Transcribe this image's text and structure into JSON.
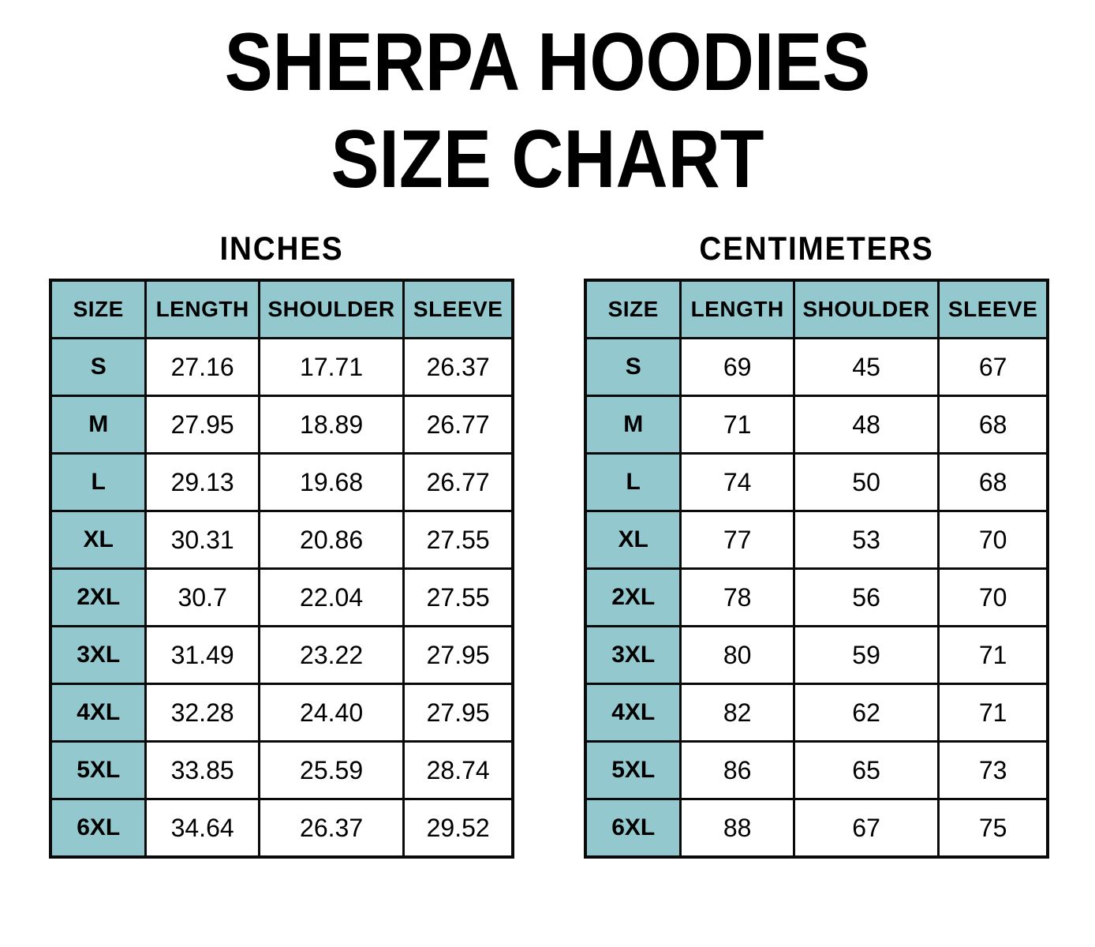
{
  "title": {
    "line1": "SHERPA HOODIES",
    "line2": "SIZE CHART"
  },
  "colors": {
    "header_bg": "#93c9ce",
    "border": "#0a0a0a",
    "text": "#000000",
    "page_bg": "#ffffff"
  },
  "chart_data": [
    {
      "type": "table",
      "title": "INCHES",
      "columns": [
        "SIZE",
        "LENGTH",
        "SHOULDER",
        "SLEEVE"
      ],
      "rows": [
        [
          "S",
          "27.16",
          "17.71",
          "26.37"
        ],
        [
          "M",
          "27.95",
          "18.89",
          "26.77"
        ],
        [
          "L",
          "29.13",
          "19.68",
          "26.77"
        ],
        [
          "XL",
          "30.31",
          "20.86",
          "27.55"
        ],
        [
          "2XL",
          "30.7",
          "22.04",
          "27.55"
        ],
        [
          "3XL",
          "31.49",
          "23.22",
          "27.95"
        ],
        [
          "4XL",
          "32.28",
          "24.40",
          "27.95"
        ],
        [
          "5XL",
          "33.85",
          "25.59",
          "28.74"
        ],
        [
          "6XL",
          "34.64",
          "26.37",
          "29.52"
        ]
      ]
    },
    {
      "type": "table",
      "title": "CENTIMETERS",
      "columns": [
        "SIZE",
        "LENGTH",
        "SHOULDER",
        "SLEEVE"
      ],
      "rows": [
        [
          "S",
          "69",
          "45",
          "67"
        ],
        [
          "M",
          "71",
          "48",
          "68"
        ],
        [
          "L",
          "74",
          "50",
          "68"
        ],
        [
          "XL",
          "77",
          "53",
          "70"
        ],
        [
          "2XL",
          "78",
          "56",
          "70"
        ],
        [
          "3XL",
          "80",
          "59",
          "71"
        ],
        [
          "4XL",
          "82",
          "62",
          "71"
        ],
        [
          "5XL",
          "86",
          "65",
          "73"
        ],
        [
          "6XL",
          "88",
          "67",
          "75"
        ]
      ]
    }
  ]
}
